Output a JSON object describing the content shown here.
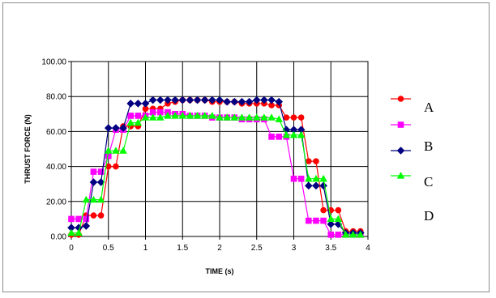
{
  "chart_data": {
    "type": "line",
    "title": "",
    "xlabel": "TIME (s)",
    "ylabel": "THRUST FORCE (N)",
    "xlim": [
      0,
      4
    ],
    "ylim": [
      0,
      100
    ],
    "x_ticks": [
      "0",
      "0.5",
      "1",
      "1.5",
      "2",
      "2.5",
      "3",
      "3.5",
      "4"
    ],
    "y_ticks": [
      "0.00",
      "20.00",
      "40.00",
      "60.00",
      "80.00",
      "100.00"
    ],
    "grid": true,
    "legend_position": "right",
    "series": [
      {
        "name": "A",
        "color": "#ff0000",
        "marker": "circle",
        "x": [
          0,
          0.1,
          0.2,
          0.3,
          0.4,
          0.5,
          0.6,
          0.7,
          0.8,
          0.9,
          1.0,
          1.1,
          1.2,
          1.3,
          1.4,
          1.5,
          1.6,
          1.7,
          1.8,
          1.9,
          2.0,
          2.1,
          2.2,
          2.3,
          2.4,
          2.5,
          2.6,
          2.7,
          2.8,
          2.9,
          3.0,
          3.1,
          3.2,
          3.3,
          3.4,
          3.5,
          3.6,
          3.7,
          3.8,
          3.9
        ],
        "values": [
          1,
          1,
          12,
          12,
          12,
          40,
          40,
          63,
          63,
          63,
          73,
          73,
          73,
          76,
          77,
          78,
          78,
          78,
          78,
          77,
          77,
          77,
          77,
          76,
          76,
          76,
          76,
          75,
          75,
          68,
          68,
          68,
          43,
          43,
          15,
          15,
          15,
          3,
          3,
          3
        ]
      },
      {
        "name": "B",
        "color": "#ff00ff",
        "marker": "square",
        "x": [
          0,
          0.1,
          0.2,
          0.3,
          0.4,
          0.5,
          0.6,
          0.7,
          0.8,
          0.9,
          1.0,
          1.1,
          1.2,
          1.3,
          1.4,
          1.5,
          1.6,
          1.7,
          1.8,
          1.9,
          2.0,
          2.1,
          2.2,
          2.3,
          2.4,
          2.5,
          2.6,
          2.7,
          2.8,
          2.9,
          3.0,
          3.1,
          3.2,
          3.3,
          3.4,
          3.5,
          3.6,
          3.7,
          3.8,
          3.9
        ],
        "values": [
          10,
          10,
          10,
          37,
          37,
          46,
          61,
          61,
          69,
          69,
          69,
          71,
          71,
          71,
          70,
          70,
          69,
          69,
          69,
          68,
          68,
          68,
          68,
          67,
          67,
          67,
          67,
          57,
          57,
          57,
          33,
          33,
          9,
          9,
          9,
          1,
          1,
          1,
          1,
          1
        ]
      },
      {
        "name": "C",
        "color": "#000080",
        "marker": "diamond",
        "x": [
          0,
          0.1,
          0.2,
          0.3,
          0.4,
          0.5,
          0.6,
          0.7,
          0.8,
          0.9,
          1.0,
          1.1,
          1.2,
          1.3,
          1.4,
          1.5,
          1.6,
          1.7,
          1.8,
          1.9,
          2.0,
          2.1,
          2.2,
          2.3,
          2.4,
          2.5,
          2.6,
          2.7,
          2.8,
          2.9,
          3.0,
          3.1,
          3.2,
          3.3,
          3.4,
          3.5,
          3.6,
          3.7,
          3.8,
          3.9
        ],
        "values": [
          5,
          5,
          6,
          31,
          31,
          62,
          62,
          62,
          76,
          76,
          76,
          78,
          78,
          78,
          78,
          78,
          78,
          78,
          78,
          78,
          78,
          77,
          77,
          77,
          77,
          78,
          78,
          78,
          77,
          61,
          61,
          61,
          29,
          29,
          29,
          7,
          7,
          2,
          2,
          2
        ]
      },
      {
        "name": "D",
        "color": "#00ff00",
        "marker": "triangle",
        "x": [
          0,
          0.1,
          0.2,
          0.3,
          0.4,
          0.5,
          0.6,
          0.7,
          0.8,
          0.9,
          1.0,
          1.1,
          1.2,
          1.3,
          1.4,
          1.5,
          1.6,
          1.7,
          1.8,
          1.9,
          2.0,
          2.1,
          2.2,
          2.3,
          2.4,
          2.5,
          2.6,
          2.7,
          2.8,
          2.9,
          3.0,
          3.1,
          3.2,
          3.3,
          3.4,
          3.5,
          3.6,
          3.7,
          3.8,
          3.9
        ],
        "values": [
          2,
          2,
          21,
          21,
          21,
          49,
          49,
          49,
          65,
          65,
          68,
          68,
          68,
          69,
          69,
          69,
          69,
          69,
          69,
          69,
          68,
          68,
          68,
          68,
          68,
          68,
          68,
          68,
          67,
          58,
          58,
          58,
          33,
          33,
          33,
          10,
          10,
          1,
          1,
          1
        ]
      }
    ]
  }
}
